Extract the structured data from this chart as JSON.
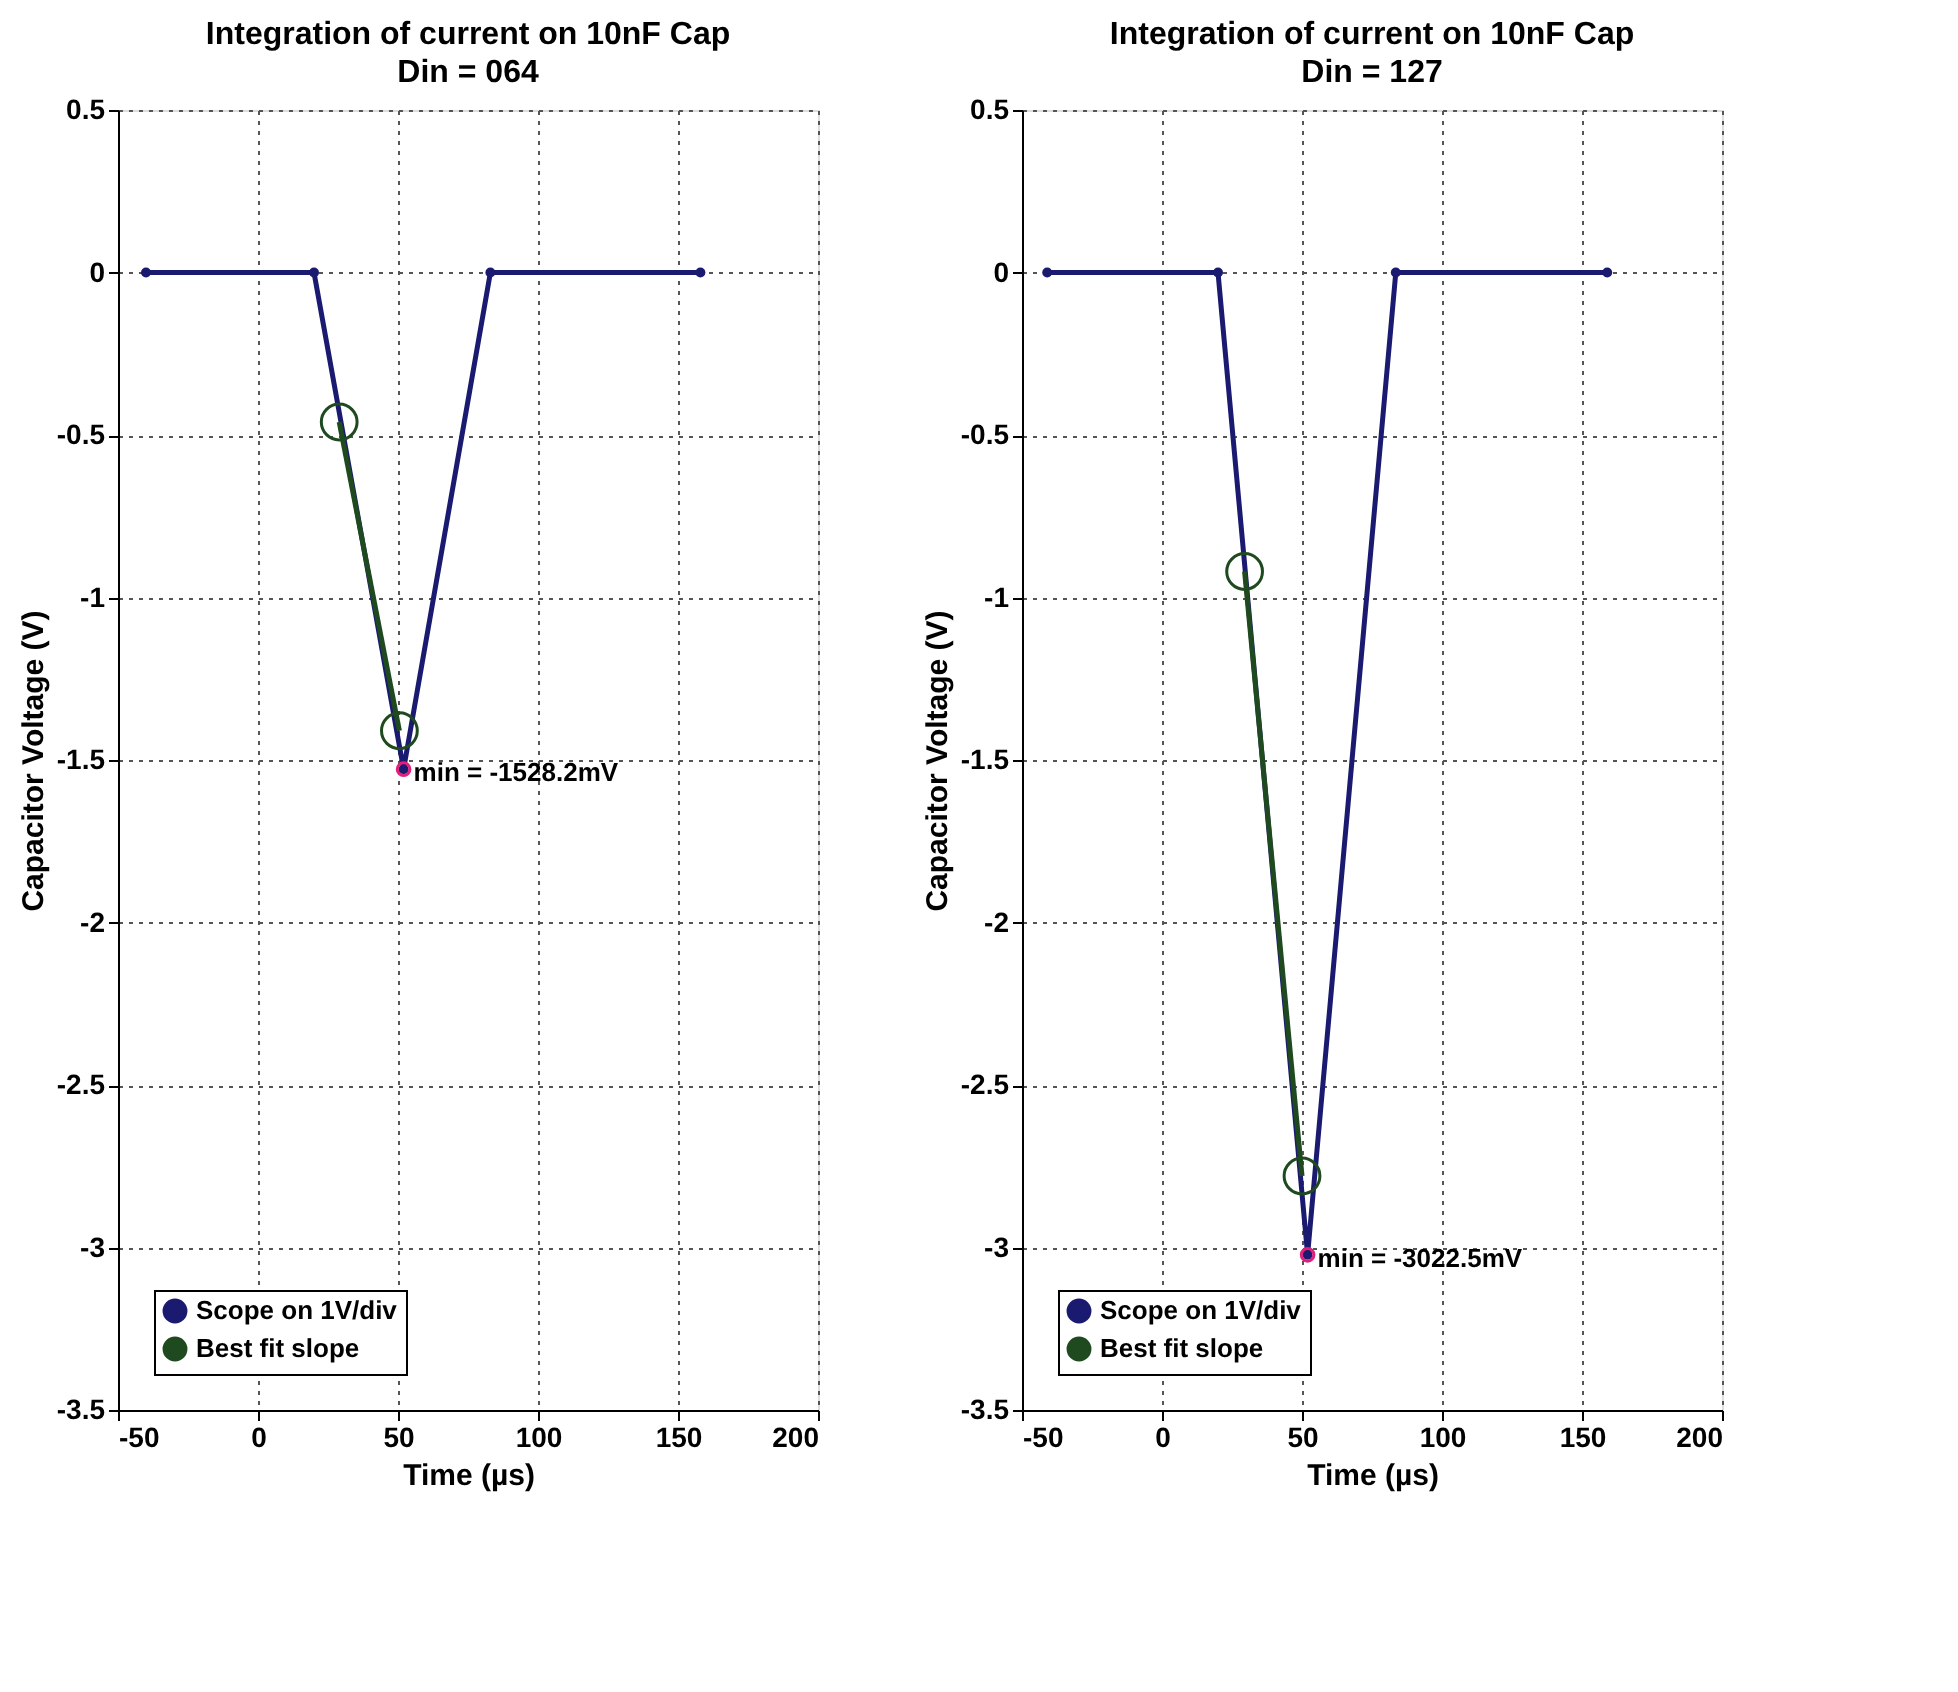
{
  "chart_data": [
    {
      "type": "line",
      "title": "Integration of current on 10nF Cap",
      "subtitle": "Din = 064",
      "xlabel": "Time (µs)",
      "ylabel": "Capacitor Voltage (V)",
      "xlim": [
        -50,
        200
      ],
      "xticks": [
        -50,
        0,
        50,
        100,
        150,
        200
      ],
      "ylim": [
        -3.5,
        0.5
      ],
      "yticks": [
        -3.5,
        -3,
        -2.5,
        -2,
        -1.5,
        -1,
        -0.5,
        0,
        0.5
      ],
      "grid": true,
      "legend": "bottom left",
      "series": [
        {
          "name": "Scope on 1V/div",
          "color": "#1a1a70",
          "marker": "circle",
          "x": [
            -40,
            20,
            52,
            83,
            158
          ],
          "values": [
            0,
            0,
            -1.5282,
            0,
            0
          ]
        },
        {
          "name": "Best fit slope",
          "color": "#1f4a1f",
          "marker": "circle",
          "x": [
            29,
            50.5
          ],
          "values": [
            -0.46,
            -1.41
          ]
        },
        {
          "type": "scatter",
          "color": "#e0207a",
          "marker": "circle",
          "x": [
            52
          ],
          "values": [
            -1.5282
          ]
        }
      ],
      "annotations": [
        {
          "text": "min = -1528.2mV",
          "x": 52,
          "y": -1.5282
        }
      ]
    },
    {
      "type": "line",
      "title": "Integration of current on 10nF Cap",
      "subtitle": "Din = 127",
      "xlabel": "Time (µs)",
      "ylabel": "Capacitor Voltage (V)",
      "xlim": [
        -50,
        200
      ],
      "xticks": [
        -50,
        0,
        50,
        100,
        150,
        200
      ],
      "ylim": [
        -3.5,
        0.5
      ],
      "yticks": [
        -3.5,
        -3,
        -2.5,
        -2,
        -1.5,
        -1,
        -0.5,
        0,
        0.5
      ],
      "grid": true,
      "legend": "bottom left",
      "series": [
        {
          "name": "Scope on 1V/div",
          "color": "#1a1a70",
          "marker": "circle",
          "x": [
            -41,
            20,
            52,
            83.5,
            159
          ],
          "values": [
            0,
            0,
            -3.0225,
            0,
            0
          ]
        },
        {
          "name": "Best fit slope",
          "color": "#1f4a1f",
          "marker": "circle",
          "x": [
            29.5,
            50
          ],
          "values": [
            -0.92,
            -2.78
          ]
        },
        {
          "type": "scatter",
          "color": "#e0207a",
          "marker": "circle",
          "x": [
            52
          ],
          "values": [
            -3.0225
          ]
        }
      ],
      "annotations": [
        {
          "text": "min = -3022.5mV",
          "x": 52,
          "y": -3.0225
        }
      ]
    }
  ]
}
